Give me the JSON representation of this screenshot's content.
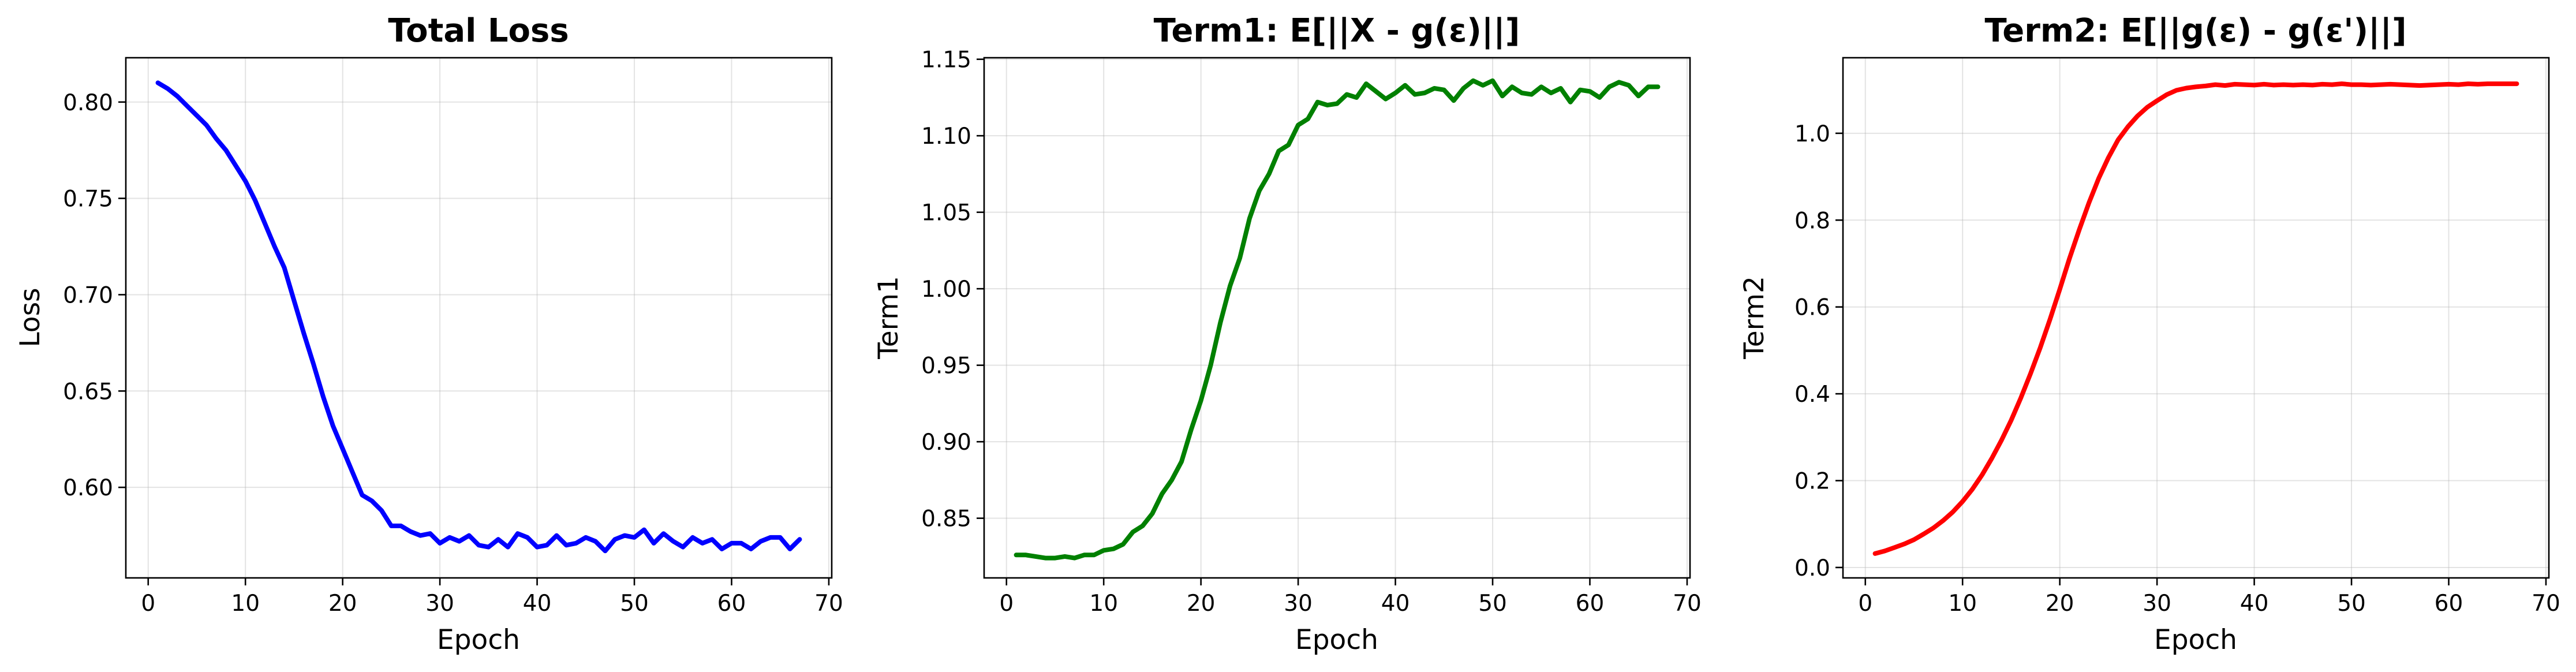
{
  "chart_data": [
    {
      "type": "line",
      "title": "Total Loss",
      "xlabel": "Epoch",
      "ylabel": "Loss",
      "xlim": [
        -2.3,
        70.3
      ],
      "ylim": [
        0.553,
        0.823
      ],
      "xticks": [
        0,
        10,
        20,
        30,
        40,
        50,
        60,
        70
      ],
      "yticks": [
        0.6,
        0.65,
        0.7,
        0.75,
        0.8
      ],
      "ytick_labels": [
        "0.60",
        "0.65",
        "0.70",
        "0.75",
        "0.80"
      ],
      "grid": true,
      "color": "#0000ff",
      "x": [
        1,
        2,
        3,
        4,
        5,
        6,
        7,
        8,
        9,
        10,
        11,
        12,
        13,
        14,
        15,
        16,
        17,
        18,
        19,
        20,
        21,
        22,
        23,
        24,
        25,
        26,
        27,
        28,
        29,
        30,
        31,
        32,
        33,
        34,
        35,
        36,
        37,
        38,
        39,
        40,
        41,
        42,
        43,
        44,
        45,
        46,
        47,
        48,
        49,
        50,
        51,
        52,
        53,
        54,
        55,
        56,
        57,
        58,
        59,
        60,
        61,
        62,
        63,
        64,
        65,
        66,
        67
      ],
      "y": [
        0.81,
        0.807,
        0.803,
        0.798,
        0.793,
        0.788,
        0.781,
        0.775,
        0.767,
        0.759,
        0.749,
        0.737,
        0.725,
        0.714,
        0.697,
        0.68,
        0.664,
        0.647,
        0.632,
        0.62,
        0.608,
        0.596,
        0.593,
        0.588,
        0.58,
        0.58,
        0.577,
        0.575,
        0.576,
        0.571,
        0.574,
        0.572,
        0.575,
        0.57,
        0.569,
        0.573,
        0.569,
        0.576,
        0.574,
        0.569,
        0.57,
        0.575,
        0.57,
        0.571,
        0.574,
        0.572,
        0.567,
        0.573,
        0.575,
        0.574,
        0.578,
        0.571,
        0.576,
        0.572,
        0.569,
        0.574,
        0.571,
        0.573,
        0.568,
        0.571,
        0.571,
        0.568,
        0.572,
        0.574,
        0.574,
        0.568,
        0.573
      ],
      "series": [
        {
          "values": "y"
        }
      ]
    },
    {
      "type": "line",
      "title": "Term1: E[||X - g(ε)||]",
      "xlabel": "Epoch",
      "ylabel": "Term1",
      "xlim": [
        -2.3,
        70.3
      ],
      "ylim": [
        0.811,
        1.151
      ],
      "xticks": [
        0,
        10,
        20,
        30,
        40,
        50,
        60,
        70
      ],
      "yticks": [
        0.85,
        0.9,
        0.95,
        1.0,
        1.05,
        1.1,
        1.15
      ],
      "ytick_labels": [
        "0.85",
        "0.90",
        "0.95",
        "1.00",
        "1.05",
        "1.10",
        "1.15"
      ],
      "grid": true,
      "color": "#008000",
      "x": [
        1,
        2,
        3,
        4,
        5,
        6,
        7,
        8,
        9,
        10,
        11,
        12,
        13,
        14,
        15,
        16,
        17,
        18,
        19,
        20,
        21,
        22,
        23,
        24,
        25,
        26,
        27,
        28,
        29,
        30,
        31,
        32,
        33,
        34,
        35,
        36,
        37,
        38,
        39,
        40,
        41,
        42,
        43,
        44,
        45,
        46,
        47,
        48,
        49,
        50,
        51,
        52,
        53,
        54,
        55,
        56,
        57,
        58,
        59,
        60,
        61,
        62,
        63,
        64,
        65,
        66,
        67
      ],
      "y": [
        0.826,
        0.826,
        0.825,
        0.824,
        0.824,
        0.825,
        0.824,
        0.826,
        0.826,
        0.829,
        0.83,
        0.833,
        0.841,
        0.845,
        0.853,
        0.866,
        0.875,
        0.887,
        0.908,
        0.927,
        0.95,
        0.978,
        1.002,
        1.02,
        1.046,
        1.064,
        1.075,
        1.09,
        1.094,
        1.107,
        1.111,
        1.122,
        1.12,
        1.121,
        1.127,
        1.125,
        1.134,
        1.129,
        1.124,
        1.128,
        1.133,
        1.127,
        1.128,
        1.131,
        1.13,
        1.123,
        1.131,
        1.136,
        1.133,
        1.136,
        1.126,
        1.132,
        1.128,
        1.127,
        1.132,
        1.128,
        1.131,
        1.122,
        1.13,
        1.129,
        1.125,
        1.132,
        1.135,
        1.133,
        1.126,
        1.132,
        1.132
      ],
      "series": [
        {
          "values": "y"
        }
      ]
    },
    {
      "type": "line",
      "title": "Term2: E[||g(ε) - g(ε')||]",
      "xlabel": "Epoch",
      "ylabel": "Term2",
      "xlim": [
        -2.3,
        70.3
      ],
      "ylim": [
        -0.024,
        1.174
      ],
      "xticks": [
        0,
        10,
        20,
        30,
        40,
        50,
        60,
        70
      ],
      "yticks": [
        0.0,
        0.2,
        0.4,
        0.6,
        0.8,
        1.0
      ],
      "ytick_labels": [
        "0.0",
        "0.2",
        "0.4",
        "0.6",
        "0.8",
        "1.0"
      ],
      "grid": true,
      "color": "#ff0000",
      "x": [
        1,
        2,
        3,
        4,
        5,
        6,
        7,
        8,
        9,
        10,
        11,
        12,
        13,
        14,
        15,
        16,
        17,
        18,
        19,
        20,
        21,
        22,
        23,
        24,
        25,
        26,
        27,
        28,
        29,
        30,
        31,
        32,
        33,
        34,
        35,
        36,
        37,
        38,
        39,
        40,
        41,
        42,
        43,
        44,
        45,
        46,
        47,
        48,
        49,
        50,
        51,
        52,
        53,
        54,
        55,
        56,
        57,
        58,
        59,
        60,
        61,
        62,
        63,
        64,
        65,
        66,
        67
      ],
      "y": [
        0.032,
        0.038,
        0.046,
        0.054,
        0.064,
        0.077,
        0.091,
        0.108,
        0.128,
        0.152,
        0.18,
        0.213,
        0.251,
        0.293,
        0.339,
        0.391,
        0.447,
        0.507,
        0.572,
        0.641,
        0.712,
        0.778,
        0.84,
        0.896,
        0.944,
        0.985,
        1.015,
        1.04,
        1.06,
        1.075,
        1.089,
        1.099,
        1.104,
        1.107,
        1.109,
        1.112,
        1.11,
        1.113,
        1.112,
        1.111,
        1.113,
        1.111,
        1.112,
        1.111,
        1.112,
        1.111,
        1.113,
        1.112,
        1.114,
        1.112,
        1.112,
        1.111,
        1.112,
        1.113,
        1.112,
        1.111,
        1.11,
        1.111,
        1.112,
        1.113,
        1.112,
        1.114,
        1.113,
        1.114,
        1.114,
        1.114,
        1.114
      ],
      "series": [
        {
          "values": "y"
        }
      ]
    }
  ]
}
